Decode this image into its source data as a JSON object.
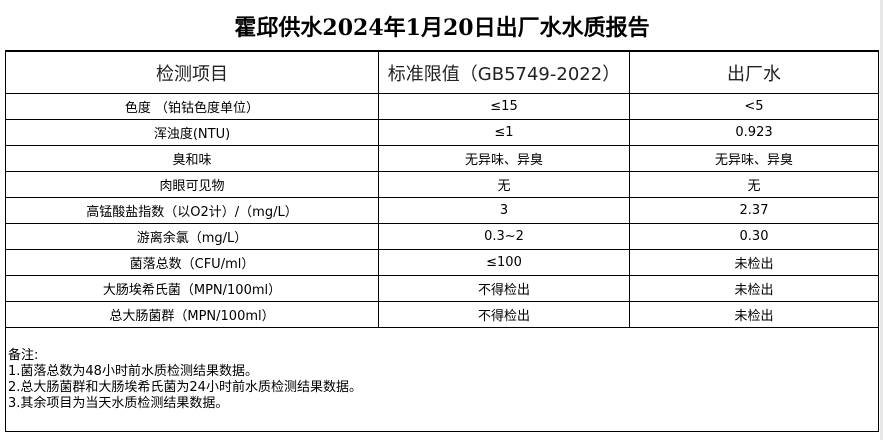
{
  "title": "霍邱供水2024年1月20日出厂水水质报告",
  "headers": [
    "检测项目",
    "标准限值（GB5749-2022）",
    "出厂水"
  ],
  "rows": [
    [
      "色度 （铂钴色度单位）",
      "≤15",
      "<5"
    ],
    [
      "浑浊度(NTU)",
      "≤1",
      "0.923"
    ],
    [
      "臭和味",
      "无异味、异臭",
      "无异味、异臭"
    ],
    [
      "肉眼可见物",
      "无",
      "无"
    ],
    [
      "高锰酸盐指数（以O2计）/（mg/L）",
      "3",
      "2.37"
    ],
    [
      "游离余氯（mg/L）",
      "0.3~2",
      "0.30"
    ],
    [
      "菌落总数（CFU/ml）",
      "≤100",
      "未检出"
    ],
    [
      "大肠埃希氏菌（MPN/100ml）",
      "不得检出",
      "未检出"
    ],
    [
      "总大肠菌群（MPN/100ml）",
      "不得检出",
      "未检出"
    ]
  ],
  "notes": {
    "label": "备注:",
    "items": [
      "1.菌落总数为48小时前水质检测结果数据。",
      "2.总大肠菌群和大肠埃希氏菌为24小时前水质检测结果数据。",
      "3.其余项目为当天水质检测结果数据。"
    ]
  }
}
